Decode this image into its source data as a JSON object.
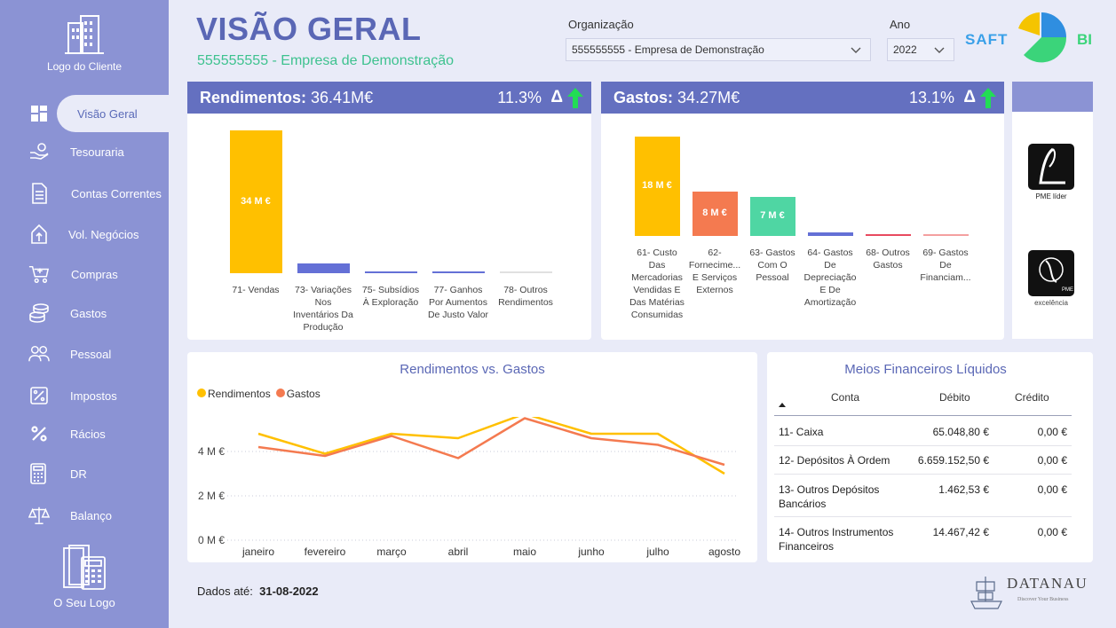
{
  "sidebar": {
    "client_logo_label": "Logo do Cliente",
    "items": [
      {
        "label": "Visão Geral",
        "icon": "dashboard-grid-icon"
      },
      {
        "label": "Tesouraria",
        "icon": "hand-coins-icon"
      },
      {
        "label": "Contas Correntes",
        "icon": "document-icon"
      },
      {
        "label": "Vol. Negócios",
        "icon": "upload-icon"
      },
      {
        "label": "Compras",
        "icon": "cart-icon"
      },
      {
        "label": "Gastos",
        "icon": "coins-icon"
      },
      {
        "label": "Pessoal",
        "icon": "people-icon"
      },
      {
        "label": "Impostos",
        "icon": "tax-icon"
      },
      {
        "label": "Rácios",
        "icon": "percent-icon"
      },
      {
        "label": "DR",
        "icon": "calculator-icon"
      },
      {
        "label": "Balanço",
        "icon": "scale-icon"
      }
    ],
    "your_logo_label": "O Seu Logo"
  },
  "header": {
    "title": "VISÃO GERAL",
    "subtitle": "555555555 - Empresa de Demonstração",
    "org_label": "Organização",
    "org_value": "555555555 - Empresa de Demonstração",
    "year_label": "Ano",
    "year_value": "2022",
    "brand_left": "SAFT",
    "brand_right": "BI"
  },
  "rendimentos": {
    "title": "Rendimentos:",
    "total": "36.41M€",
    "pct": "11.3%",
    "delta": "Δ",
    "chart_data": {
      "type": "bar",
      "categories": [
        "71- Vendas",
        "73- Variações Nos Inventários Da Produção",
        "75- Subsídios À Exploração",
        "77- Ganhos Por Aumentos De Justo Valor",
        "78- Outros Rendimentos"
      ],
      "values": [
        34,
        2.4,
        0,
        0,
        0.1
      ],
      "data_labels": [
        "34 M €",
        "",
        "",
        "",
        ""
      ],
      "colors": [
        "#ffc000",
        "#6470d6",
        "#6470d6",
        "#6470d6",
        "#e0e0e0"
      ]
    }
  },
  "gastos": {
    "title": "Gastos:",
    "total": "34.27M€",
    "pct": "13.1%",
    "delta": "Δ",
    "chart_data": {
      "type": "bar",
      "categories": [
        "61- Custo Das Mercadorias Vendidas E Das Matérias Consumidas",
        "62- Fornecime... E Serviços Externos",
        "63- Gastos Com O Pessoal",
        "64- Gastos De Depreciação E De Amortização",
        "68- Outros Gastos",
        "69- Gastos De Financiam..."
      ],
      "values": [
        18,
        8,
        7,
        0.6,
        0.3,
        0.2
      ],
      "data_labels": [
        "18 M €",
        "8 M €",
        "7 M €",
        "",
        "",
        ""
      ],
      "colors": [
        "#ffc000",
        "#f47a50",
        "#4fd6a3",
        "#6470d6",
        "#e84a5f",
        "#f4a0a0"
      ]
    }
  },
  "line_chart": {
    "title": "Rendimentos vs. Gastos",
    "chart_data": {
      "type": "line",
      "x": [
        "janeiro",
        "fevereiro",
        "março",
        "abril",
        "maio",
        "junho",
        "julho",
        "agosto"
      ],
      "y_ticks": [
        "0 M €",
        "2 M €",
        "4 M €"
      ],
      "ylim": [
        0,
        6
      ],
      "series": [
        {
          "name": "Rendimentos",
          "color": "#ffc000",
          "values": [
            4.8,
            3.9,
            4.8,
            4.6,
            5.7,
            4.8,
            4.8,
            3.0
          ]
        },
        {
          "name": "Gastos",
          "color": "#f47a50",
          "values": [
            4.2,
            3.8,
            4.7,
            3.7,
            5.5,
            4.6,
            4.3,
            3.4
          ]
        }
      ]
    }
  },
  "table": {
    "title": "Meios Financeiros Líquidos",
    "headers": [
      "Conta",
      "Débito",
      "Crédito"
    ],
    "rows": [
      {
        "conta": "11- Caixa",
        "debito": "65.048,80 €",
        "credito": "0,00 €"
      },
      {
        "conta": "12- Depósitos À Ordem",
        "debito": "6.659.152,50 €",
        "credito": "0,00 €"
      },
      {
        "conta": "13- Outros Depósitos Bancários",
        "debito": "1.462,53 €",
        "credito": "0,00 €"
      },
      {
        "conta": "14- Outros Instrumentos Financeiros",
        "debito": "14.467,42 €",
        "credito": "0,00 €"
      }
    ]
  },
  "awards": {
    "pme_lider": "PME líder",
    "pme_excelencia": "excelência",
    "pme_mark": "PME"
  },
  "footer": {
    "label": "Dados até:",
    "date": "31-08-2022",
    "partner_name": "DATANAU",
    "partner_tagline": "Discover Your Business"
  }
}
